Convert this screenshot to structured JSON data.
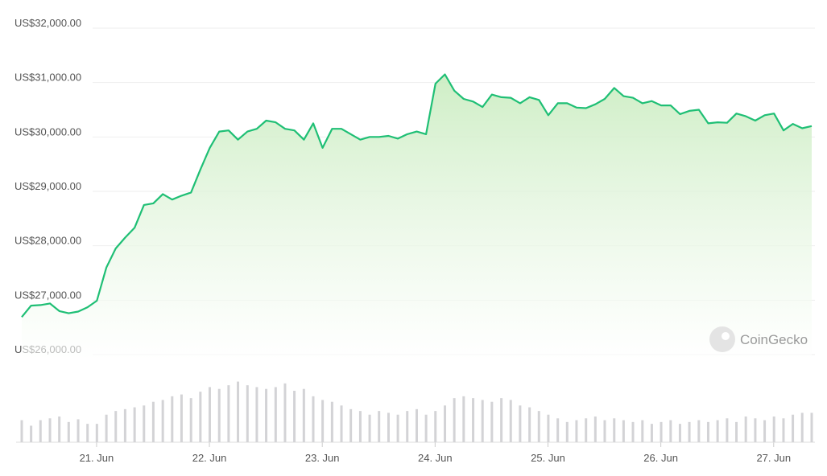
{
  "chart_data": {
    "type": "line",
    "watermark": "CoinGecko",
    "x": [
      20.337,
      20.42,
      20.503,
      20.587,
      20.67,
      20.753,
      20.837,
      20.92,
      21.003,
      21.087,
      21.17,
      21.253,
      21.337,
      21.42,
      21.503,
      21.587,
      21.67,
      21.753,
      21.837,
      21.92,
      22.003,
      22.087,
      22.17,
      22.253,
      22.337,
      22.42,
      22.503,
      22.587,
      22.67,
      22.753,
      22.837,
      22.92,
      23.003,
      23.087,
      23.17,
      23.253,
      23.337,
      23.42,
      23.503,
      23.587,
      23.67,
      23.753,
      23.837,
      23.92,
      24.003,
      24.087,
      24.17,
      24.253,
      24.337,
      24.42,
      24.503,
      24.587,
      24.67,
      24.753,
      24.837,
      24.92,
      25.003,
      25.087,
      25.17,
      25.253,
      25.337,
      25.42,
      25.503,
      25.587,
      25.67,
      25.753,
      25.837,
      25.92,
      26.003,
      26.087,
      26.17,
      26.253,
      26.337,
      26.42,
      26.503,
      26.587,
      26.67,
      26.753,
      26.837,
      26.92,
      27.003,
      27.087,
      27.17,
      27.253,
      27.337
    ],
    "series": [
      {
        "color": "#1fbf75",
        "values": [
          26690,
          26900,
          26910,
          26940,
          26800,
          26760,
          26790,
          26870,
          26990,
          27600,
          27950,
          28150,
          28330,
          28750,
          28780,
          28950,
          28850,
          28920,
          28980,
          29400,
          29800,
          30100,
          30120,
          29950,
          30100,
          30150,
          30300,
          30270,
          30150,
          30120,
          29950,
          30250,
          29800,
          30150,
          30150,
          30050,
          29950,
          30000,
          30000,
          30020,
          29970,
          30050,
          30100,
          30050,
          30980,
          31150,
          30850,
          30700,
          30650,
          30550,
          30780,
          30730,
          30720,
          30620,
          30730,
          30680,
          30400,
          30620,
          30620,
          30540,
          30530,
          30600,
          30700,
          30900,
          30750,
          30720,
          30620,
          30660,
          30580,
          30580,
          30420,
          30480,
          30500,
          30250,
          30270,
          30260,
          30430,
          30380,
          30300,
          30400,
          30430,
          30120,
          30240,
          30160,
          30200
        ]
      },
      {
        "axis": "volume",
        "color": "#d3d3d6",
        "values": [
          24,
          18,
          24,
          26,
          28,
          22,
          25,
          20,
          20,
          30,
          34,
          36,
          38,
          40,
          44,
          46,
          50,
          52,
          48,
          55,
          60,
          58,
          62,
          66,
          62,
          60,
          58,
          60,
          64,
          56,
          58,
          50,
          46,
          44,
          40,
          36,
          34,
          30,
          34,
          32,
          30,
          34,
          36,
          30,
          34,
          40,
          48,
          50,
          48,
          46,
          44,
          48,
          46,
          40,
          38,
          34,
          30,
          26,
          22,
          24,
          26,
          28,
          24,
          26,
          24,
          22,
          24,
          20,
          22,
          24,
          20,
          22,
          24,
          22,
          24,
          26,
          22,
          28,
          26,
          24,
          28,
          26,
          30,
          32,
          32
        ]
      }
    ],
    "xlim": [
      20.337,
      27.337
    ],
    "xticks": [
      {
        "value": 21,
        "label": "21. Jun"
      },
      {
        "value": 22,
        "label": "22. Jun"
      },
      {
        "value": 23,
        "label": "23. Jun"
      },
      {
        "value": 24,
        "label": "24. Jun"
      },
      {
        "value": 25,
        "label": "25. Jun"
      },
      {
        "value": 26,
        "label": "26. Jun"
      },
      {
        "value": 27,
        "label": "27. Jun"
      }
    ],
    "ylim": [
      26000,
      32000
    ],
    "yticks": [
      {
        "value": 26000,
        "label": "US$26,000.00"
      },
      {
        "value": 27000,
        "label": "US$27,000.00"
      },
      {
        "value": 28000,
        "label": "US$28,000.00"
      },
      {
        "value": 29000,
        "label": "US$29,000.00"
      },
      {
        "value": 30000,
        "label": "US$30,000.00"
      },
      {
        "value": 31000,
        "label": "US$31,000.00"
      },
      {
        "value": 32000,
        "label": "US$32,000.00"
      }
    ],
    "volume_ylim": [
      0,
      70
    ],
    "grid": true
  }
}
